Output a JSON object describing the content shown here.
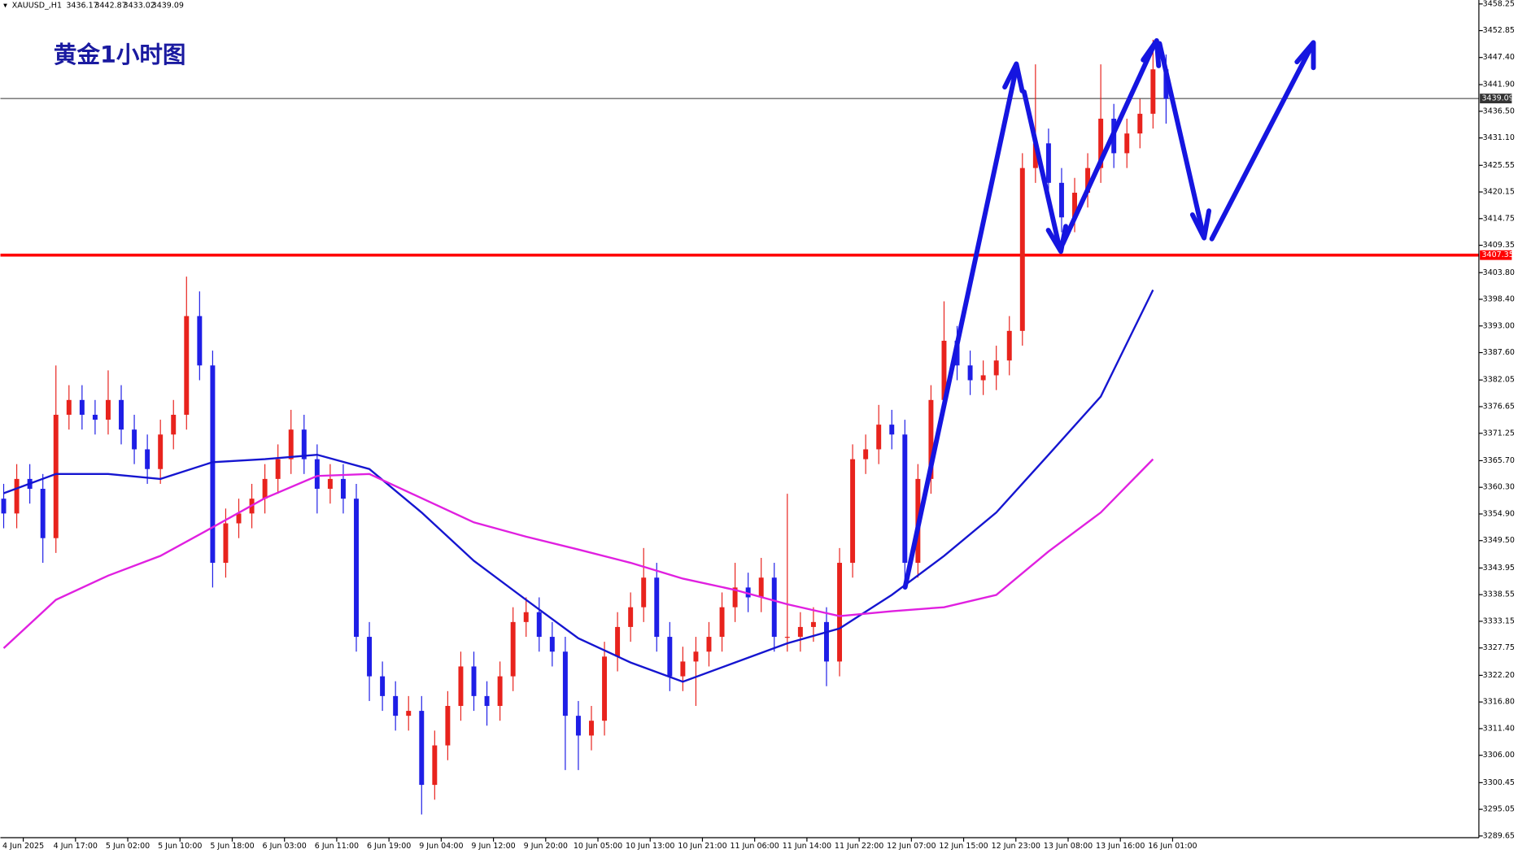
{
  "chart_data": {
    "type": "candlestick",
    "title": "黄金1小时图",
    "symbol": "XAUUSD_,H1",
    "header_values": [
      3436.17,
      3442.87,
      3433.02,
      3439.09
    ],
    "up_color": "#e8231d",
    "down_color": "#1e1ee6",
    "xlim": [
      -0.5,
      225.9
    ],
    "ylim": [
      3289.3,
      3459.05
    ],
    "xticks": [
      {
        "value": 3,
        "label": "4 Jun 2025"
      },
      {
        "value": 11,
        "label": "4 Jun 17:00"
      },
      {
        "value": 19,
        "label": "5 Jun 02:00"
      },
      {
        "value": 27,
        "label": "5 Jun 10:00"
      },
      {
        "value": 35,
        "label": "5 Jun 18:00"
      },
      {
        "value": 43,
        "label": "6 Jun 03:00"
      },
      {
        "value": 51,
        "label": "6 Jun 11:00"
      },
      {
        "value": 59,
        "label": "6 Jun 19:00"
      },
      {
        "value": 67,
        "label": "9 Jun 04:00"
      },
      {
        "value": 75,
        "label": "9 Jun 12:00"
      },
      {
        "value": 83,
        "label": "9 Jun 20:00"
      },
      {
        "value": 91,
        "label": "10 Jun 05:00"
      },
      {
        "value": 99,
        "label": "10 Jun 13:00"
      },
      {
        "value": 107,
        "label": "10 Jun 21:00"
      },
      {
        "value": 115,
        "label": "11 Jun 06:00"
      },
      {
        "value": 123,
        "label": "11 Jun 14:00"
      },
      {
        "value": 131,
        "label": "11 Jun 22:00"
      },
      {
        "value": 139,
        "label": "12 Jun 07:00"
      },
      {
        "value": 147,
        "label": "12 Jun 15:00"
      },
      {
        "value": 155,
        "label": "12 Jun 23:00"
      },
      {
        "value": 163,
        "label": "13 Jun 08:00"
      },
      {
        "value": 171,
        "label": "13 Jun 16:00"
      },
      {
        "value": 179,
        "label": "16 Jun 01:00"
      }
    ],
    "yticks": [
      3458.25,
      3452.85,
      {
        "value": 3447.4,
        "label": "3447.40"
      },
      {
        "value": 3441.9,
        "label": "3441.90"
      },
      {
        "value": 3436.5,
        "label": "3436.50"
      },
      {
        "value": 3431.1,
        "label": "3431.10"
      },
      3425.55,
      3420.15,
      3414.75,
      3409.35,
      {
        "value": 3403.8,
        "label": "3403.80"
      },
      {
        "value": 3398.4,
        "label": "3398.40"
      },
      {
        "value": 3393,
        "label": "3393.00"
      },
      {
        "value": 3387.6,
        "label": "3387.60"
      },
      3382.05,
      3376.65,
      3371.25,
      {
        "value": 3365.7,
        "label": "3365.70"
      },
      {
        "value": 3360.3,
        "label": "3360.30"
      },
      {
        "value": 3354.9,
        "label": "3354.90"
      },
      {
        "value": 3349.5,
        "label": "3349.50"
      },
      3343.95,
      3338.55,
      3333.15,
      3327.75,
      {
        "value": 3322.2,
        "label": "3322.20"
      },
      {
        "value": 3316.8,
        "label": "3316.80"
      },
      {
        "value": 3311.4,
        "label": "3311.40"
      },
      {
        "value": 3306,
        "label": "3306.00"
      },
      3300.45,
      3295.05,
      3289.65
    ],
    "hlines": [
      {
        "value": 3407.35,
        "color": "#ff0000"
      },
      {
        "value": 3439.09,
        "color": "#333333"
      }
    ],
    "x": [
      0,
      2,
      4,
      6,
      8,
      10,
      12,
      14,
      16,
      18,
      20,
      22,
      24,
      26,
      28,
      30,
      32,
      34,
      36,
      38,
      40,
      42,
      44,
      46,
      48,
      50,
      52,
      54,
      56,
      58,
      60,
      62,
      64,
      66,
      68,
      70,
      72,
      74,
      76,
      78,
      80,
      82,
      84,
      86,
      88,
      90,
      92,
      94,
      96,
      98,
      100,
      102,
      104,
      106,
      108,
      110,
      112,
      114,
      116,
      118,
      120,
      122,
      124,
      126,
      128,
      130,
      132,
      134,
      136,
      138,
      140,
      142,
      144,
      146,
      148,
      150,
      152,
      154,
      156,
      158,
      160,
      162,
      164,
      166,
      168,
      170,
      172,
      174,
      176,
      178
    ],
    "open": [
      3358,
      3355,
      3362,
      3360,
      3350,
      3375,
      3378,
      3375,
      3374,
      3378,
      3372,
      3368,
      3364,
      3371,
      3375,
      3395,
      3385,
      3345,
      3353,
      3355,
      3358,
      3362,
      3366,
      3372,
      3366,
      3360,
      3362,
      3358,
      3330,
      3322,
      3318,
      3314,
      3315,
      3300,
      3308,
      3316,
      3324,
      3318,
      3316,
      3322,
      3333,
      3335,
      3330,
      3327,
      3314,
      3310,
      3313,
      3326,
      3332,
      3336,
      3342,
      3330,
      3322,
      3325,
      3327,
      3330,
      3336,
      3340,
      3338,
      3342,
      3330,
      3330,
      3332,
      3333,
      3325,
      3345,
      3366,
      3368,
      3373,
      3371,
      3345,
      3362,
      3378,
      3390,
      3385,
      3382,
      3383,
      3386,
      3392,
      3425,
      3430,
      3422,
      3415,
      3420,
      3425,
      3435,
      3428,
      3432,
      3436,
      3445
    ],
    "high": [
      3361,
      3365,
      3365,
      3363,
      3385,
      3381,
      3381,
      3378,
      3384,
      3381,
      3375,
      3371,
      3374,
      3378,
      3403,
      3400,
      3388,
      3356,
      3358,
      3361,
      3365,
      3369,
      3376,
      3375,
      3369,
      3365,
      3365,
      3361,
      3333,
      3325,
      3321,
      3318,
      3318,
      3311,
      3319,
      3327,
      3327,
      3321,
      3325,
      3336,
      3338,
      3338,
      3333,
      3330,
      3317,
      3316,
      3329,
      3335,
      3339,
      3348,
      3345,
      3333,
      3328,
      3330,
      3333,
      3339,
      3345,
      3343,
      3346,
      3345,
      3359,
      3335,
      3336,
      3336,
      3348,
      3369,
      3371,
      3377,
      3376,
      3374,
      3365,
      3381,
      3398,
      3393,
      3388,
      3386,
      3389,
      3395,
      3428,
      3446,
      3433,
      3425,
      3423,
      3428,
      3446,
      3438,
      3435,
      3439,
      3451,
      3448
    ],
    "low": [
      3352,
      3352,
      3357,
      3345,
      3347,
      3372,
      3372,
      3371,
      3371,
      3369,
      3365,
      3361,
      3361,
      3368,
      3372,
      3382,
      3340,
      3342,
      3350,
      3352,
      3355,
      3359,
      3363,
      3363,
      3355,
      3357,
      3355,
      3327,
      3317,
      3315,
      3311,
      3311,
      3294,
      3297,
      3305,
      3313,
      3315,
      3312,
      3313,
      3319,
      3330,
      3327,
      3324,
      3303,
      3303,
      3307,
      3310,
      3323,
      3329,
      3333,
      3327,
      3319,
      3319,
      3316,
      3324,
      3327,
      3333,
      3335,
      3335,
      3327,
      3327,
      3327,
      3329,
      3320,
      3322,
      3342,
      3363,
      3365,
      3368,
      3340,
      3342,
      3359,
      3375,
      3382,
      3379,
      3379,
      3380,
      3383,
      3389,
      3422,
      3419,
      3412,
      3412,
      3417,
      3422,
      3425,
      3425,
      3429,
      3433,
      3434
    ],
    "close": [
      3355,
      3362,
      3360,
      3350,
      3375,
      3378,
      3375,
      3374,
      3378,
      3372,
      3368,
      3364,
      3371,
      3375,
      3395,
      3385,
      3345,
      3353,
      3355,
      3358,
      3362,
      3366,
      3372,
      3366,
      3360,
      3362,
      3358,
      3330,
      3322,
      3318,
      3314,
      3315,
      3300,
      3308,
      3316,
      3324,
      3318,
      3316,
      3322,
      3333,
      3335,
      3330,
      3327,
      3314,
      3310,
      3313,
      3326,
      3332,
      3336,
      3342,
      3330,
      3322,
      3325,
      3327,
      3330,
      3336,
      3340,
      3338,
      3342,
      3330,
      3330,
      3332,
      3333,
      3325,
      3345,
      3366,
      3368,
      3373,
      3371,
      3345,
      3362,
      3378,
      3390,
      3385,
      3382,
      3383,
      3386,
      3392,
      3425,
      3430,
      3422,
      3415,
      3420,
      3425,
      3435,
      3428,
      3432,
      3436,
      3445,
      3439
    ],
    "ma_x": [
      0,
      8,
      16,
      24,
      32,
      40,
      48,
      56,
      64,
      72,
      80,
      88,
      96,
      104,
      112,
      120,
      128,
      136,
      144,
      152,
      160,
      168,
      176
    ],
    "lines": [
      {
        "color": "#1515d0",
        "values": [
          3359.1,
          3363.0,
          3363.0,
          3362.0,
          3365.4,
          3366.0,
          3366.9,
          3364.0,
          3355.2,
          3345.4,
          3337.5,
          3329.7,
          3324.8,
          3320.9,
          3324.8,
          3328.7,
          3331.7,
          3338.5,
          3346.4,
          3355.2,
          3366.9,
          3378.7,
          3400.3
        ]
      },
      {
        "color": "#e020e0",
        "values": [
          3327.7,
          3337.5,
          3342.4,
          3346.4,
          3352.2,
          3358.1,
          3362.6,
          3363.0,
          3358.1,
          3353.2,
          3350.3,
          3347.7,
          3345.0,
          3341.8,
          3339.5,
          3336.6,
          3334.2,
          3335.2,
          3336.0,
          3338.5,
          3347.3,
          3355.2,
          3366.0
        ]
      }
    ]
  }
}
